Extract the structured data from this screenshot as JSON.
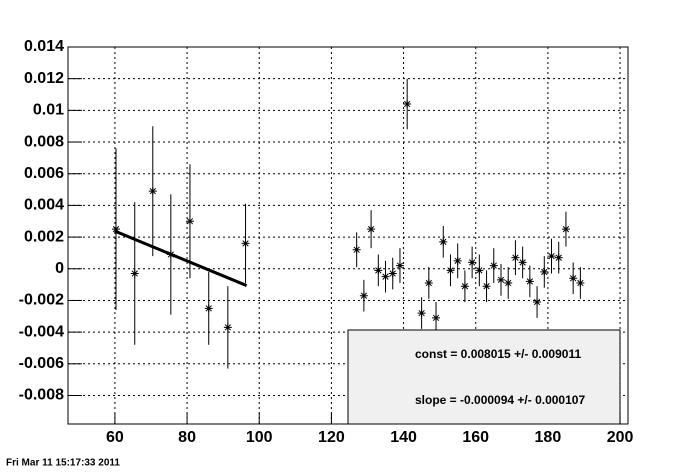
{
  "chart_data": {
    "type": "scatter",
    "x": [
      60.3,
      65.5,
      70.5,
      75.5,
      80.8,
      86,
      91.3,
      96.2,
      127,
      129,
      131,
      133,
      135,
      137,
      139,
      141,
      145,
      147,
      149,
      151,
      153,
      155,
      157,
      159,
      161,
      163,
      165,
      167,
      169,
      171,
      173,
      175,
      177,
      179,
      181,
      183,
      185,
      187,
      189
    ],
    "values": [
      0.0025,
      -0.0003,
      0.0049,
      0.0009,
      0.003,
      -0.0025,
      -0.0037,
      0.0016,
      0.0012,
      -0.0017,
      0.0025,
      -0.0001,
      -0.0005,
      -0.0003,
      0.0002,
      0.0104,
      -0.0028,
      -0.0009,
      -0.0031,
      0.0017,
      -0.0001,
      0.0005,
      -0.0011,
      0.0004,
      -0.0001,
      -0.0011,
      0.0002,
      -0.0007,
      -0.0009,
      0.0007,
      0.0004,
      -0.0008,
      -0.0021,
      -0.0002,
      0.0008,
      0.0007,
      0.0025,
      -0.0006,
      -0.0009
    ],
    "errors": [
      0.0051,
      0.0045,
      0.0041,
      0.0038,
      0.0036,
      0.0023,
      0.0026,
      0.0025,
      0.0011,
      0.001,
      0.0012,
      0.001,
      0.001,
      0.001,
      0.0011,
      0.0016,
      0.001,
      0.001,
      0.001,
      0.001,
      0.001,
      0.0011,
      0.001,
      0.001,
      0.001,
      0.001,
      0.0011,
      0.001,
      0.001,
      0.0011,
      0.001,
      0.001,
      0.001,
      0.001,
      0.0011,
      0.001,
      0.0011,
      0.001,
      0.001
    ],
    "color": "#000000",
    "fit_line": {
      "x": [
        60,
        96.5
      ],
      "values": [
        0.002375,
        -0.00106
      ]
    },
    "xlim": [
      47,
      202.2
    ],
    "ylim": [
      -0.0098,
      0.014
    ],
    "xticks": [
      60,
      80,
      100,
      120,
      140,
      160,
      180,
      200
    ],
    "yticks": [
      -0.008,
      -0.006,
      -0.004,
      -0.002,
      0,
      0.002,
      0.004,
      0.006,
      0.008,
      0.01,
      0.012,
      0.014
    ],
    "grid": true,
    "stats": [
      "const = 0.008015 +/- 0.009011",
      "slope = -0.000094 +/- 0.000107"
    ],
    "timestamp": "Fri Mar 11 15:17:33 2011"
  }
}
